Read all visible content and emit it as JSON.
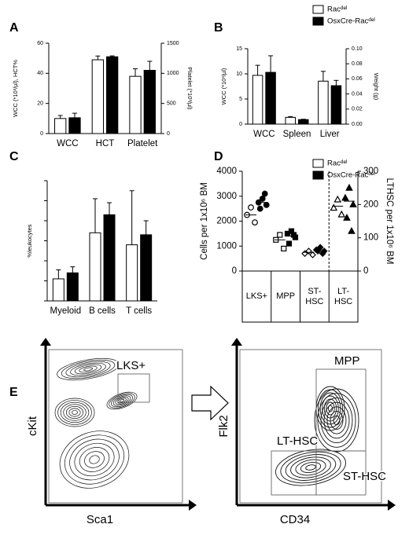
{
  "chart_data": [
    {
      "type": "bar",
      "panel": "A",
      "categories": [
        "WCC",
        "HCT",
        "Platelet"
      ],
      "category_axes": [
        "y",
        "y",
        "y2"
      ],
      "ylabel": "WCC (*10³/µl), HCT%",
      "y2label": "Platelet (*10³/µl)",
      "ylim": [
        0,
        60
      ],
      "yticks": [
        0,
        20,
        40,
        60
      ],
      "y2lim": [
        0,
        1500
      ],
      "y2ticks": [
        0,
        500,
        1000,
        1500
      ],
      "series": [
        {
          "color": "#ffffff",
          "values": [
            10,
            49,
            950
          ],
          "errors": [
            2,
            2.5,
            125
          ]
        },
        {
          "color": "#000000",
          "values": [
            10.5,
            51,
            1050
          ],
          "errors": [
            3,
            0.6,
            150
          ]
        }
      ]
    },
    {
      "type": "bar",
      "panel": "B",
      "categories": [
        "WCC",
        "Spleen",
        "Liver"
      ],
      "category_axes": [
        "y",
        "y2",
        "y2"
      ],
      "ylabel": "WCC (*10³/µl)",
      "y2label": "Weight (g)",
      "ylim": [
        0,
        15
      ],
      "yticks": [
        0,
        5,
        10,
        15
      ],
      "y2lim": [
        0,
        0.1
      ],
      "y2ticks": [
        {
          "value": 0,
          "label": "0.00"
        },
        {
          "value": 0.02,
          "label": "0.02"
        },
        {
          "value": 0.04,
          "label": "0.04"
        },
        {
          "value": 0.06,
          "label": "0.06"
        },
        {
          "value": 0.08,
          "label": "0.08"
        },
        {
          "value": 0.1,
          "label": "0.10"
        }
      ],
      "legend": "top-right",
      "series": [
        {
          "name": "Racᵈᵉˡ",
          "color": "#ffffff",
          "values": [
            9.7,
            0.009,
            0.057
          ],
          "errors": [
            2,
            0.001,
            0.013
          ]
        },
        {
          "name": "OsxCre-Racᵈᵉˡ",
          "color": "#000000",
          "values": [
            10.3,
            0.006,
            0.051
          ],
          "errors": [
            3.3,
            0.0005,
            0.007
          ]
        }
      ]
    },
    {
      "type": "bar",
      "panel": "C",
      "categories": [
        "Myeloid",
        "B cells",
        "T cells"
      ],
      "ylabel": "%leukocytes",
      "ylim": [
        0,
        60
      ],
      "yticks": [
        0,
        10,
        20,
        30,
        40,
        50,
        60
      ],
      "ytick_labels": false,
      "series": [
        {
          "color": "#ffffff",
          "values": [
            11,
            34,
            28
          ],
          "errors": [
            4.5,
            17,
            27
          ]
        },
        {
          "color": "#000000",
          "values": [
            14,
            43,
            33
          ],
          "errors": [
            3,
            6,
            7
          ]
        }
      ]
    },
    {
      "type": "strip",
      "panel": "D",
      "categories": [
        "LKS+",
        "MPP",
        "ST-HSC",
        "LT-HSC"
      ],
      "category_axes": [
        "y",
        "y",
        "y",
        "y2"
      ],
      "markers": [
        "circle",
        "square",
        "diamond",
        "triangle"
      ],
      "ylabel": "Cells per 1x10⁶ BM",
      "y2label": "LTHSC per 1x10⁶ BM",
      "ylim": [
        0,
        4000
      ],
      "yticks": [
        0,
        1000,
        2000,
        3000,
        4000
      ],
      "y2lim": [
        0,
        300
      ],
      "y2ticks": [
        0,
        100,
        200,
        300
      ],
      "legend": "top-right",
      "series": [
        {
          "name": "Racᵈᵉˡ",
          "color": "#ffffff",
          "points": [
            [
              2550,
              2250,
              1950
            ],
            [
              1450,
              1250,
              900
            ],
            [
              800,
              700,
              650
            ],
            [
              215,
              190,
              170
            ]
          ],
          "means": [
            2250,
            1250,
            750,
            195
          ]
        },
        {
          "name": "OsxCre-Racᵈᵉˡ",
          "color": "#000000",
          "points": [
            [
              2900,
              2750,
              2650,
              2500,
              3100
            ],
            [
              1600,
              1500,
              1350,
              1100,
              1450
            ],
            [
              950,
              850,
              800,
              800,
              700
            ],
            [
              250,
              220,
              200,
              160,
              120
            ]
          ],
          "means": [
            2750,
            1400,
            850,
            210
          ]
        }
      ]
    },
    {
      "type": "flow",
      "panel": "E",
      "plots": [
        {
          "xlabel": "Sca1",
          "ylabel": "cKit",
          "gates": [
            "LKS+"
          ]
        },
        {
          "xlabel": "CD34",
          "ylabel": "Flk2",
          "gates": [
            "MPP",
            "LT-HSC",
            "ST-HSC"
          ]
        }
      ]
    }
  ]
}
